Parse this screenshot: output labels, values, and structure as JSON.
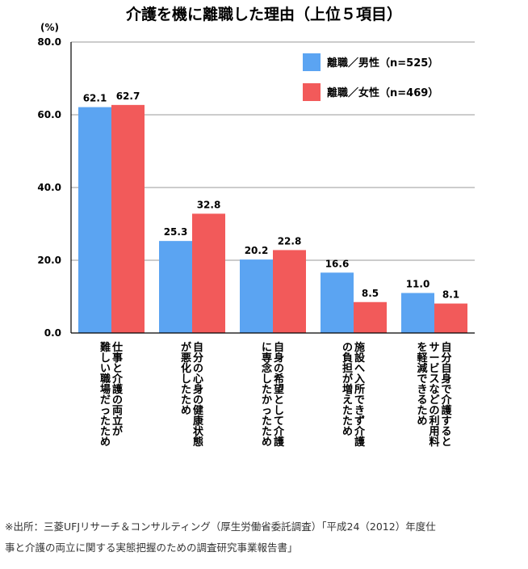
{
  "chart_data": {
    "type": "bar",
    "title": "介護を機に離職した理由（上位５項目）",
    "ylabel": "(%)",
    "ylim": [
      0,
      80
    ],
    "yticks": [
      "0.0",
      "20.0",
      "40.0",
      "60.0",
      "80.0"
    ],
    "grid": true,
    "legend_position": "top-right",
    "categories": [
      "仕事と介護の両立が難しい職場だったため",
      "自分の心身の健康状態が悪化したため",
      "自身の希望として介護に専念したかったため",
      "施設へ入所できず介護の負担が増えたため",
      "自分自身で介護するとサービスなどの利用料を軽減できるため"
    ],
    "category_lines": [
      [
        "仕事と介護の両立が",
        "難しい職場だったため"
      ],
      [
        "自分の心身の健康状態",
        "が悪化したため"
      ],
      [
        "自身の希望として介護",
        "に専念したかったため"
      ],
      [
        "施設へ入所できず介護",
        "の負担が増えたため"
      ],
      [
        "自分自身で介護すると",
        "サービスなどの利用料",
        "を軽減できるため"
      ]
    ],
    "series": [
      {
        "name": "離職／男性（n=525）",
        "color": "#5ba4f2",
        "values": [
          62.1,
          25.3,
          20.2,
          16.6,
          11.0
        ],
        "labels": [
          "62.1",
          "25.3",
          "20.2",
          "16.6",
          "11.0"
        ]
      },
      {
        "name": "離職／女性（n=469）",
        "color": "#f25a5a",
        "values": [
          62.7,
          32.8,
          22.8,
          8.5,
          8.1
        ],
        "labels": [
          "62.7",
          "32.8",
          "22.8",
          "8.5",
          "8.1"
        ]
      }
    ]
  },
  "source": {
    "line1": "※出所：三菱UFJリサーチ＆コンサルティング（厚生労働省委託調査）「平成24（2012）年度仕",
    "line2": "事と介護の両立に関する実態把握のための調査研究事業報告書」"
  }
}
